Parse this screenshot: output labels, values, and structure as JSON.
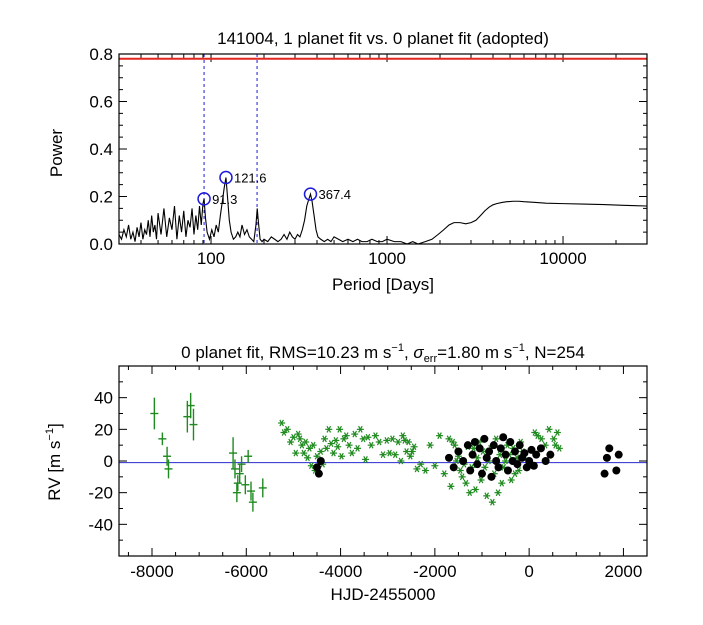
{
  "colors": {
    "axis": "#000000",
    "periodogram": "#000000",
    "fap_line": "#e3261f",
    "alias_line": "#1a1adb",
    "peak_marker": "#1a1adb",
    "zero_line": "#2a2ad0",
    "series_green": "#1f8a1f",
    "series_black": "#000000"
  },
  "chart_data": [
    {
      "type": "line",
      "title": "141004,  1 planet fit vs. 0 planet fit (adopted)",
      "xlabel": "Period [Days]",
      "ylabel": "Power",
      "xscale": "log",
      "xlim": [
        30,
        30000
      ],
      "ylim": [
        0,
        0.8
      ],
      "xticks": [
        100,
        1000,
        10000
      ],
      "xtick_labels": [
        "100",
        "1000",
        "10000"
      ],
      "yticks": [
        0.0,
        0.2,
        0.4,
        0.6,
        0.8
      ],
      "ytick_labels": [
        "0.0",
        "0.2",
        "0.4",
        "0.6",
        "0.8"
      ],
      "fap_level": 0.78,
      "alias_periods": [
        91.3,
        182.6
      ],
      "peaks": [
        {
          "period": 91.3,
          "power": 0.19,
          "label": "91.3"
        },
        {
          "period": 121.6,
          "power": 0.28,
          "label": "121.6"
        },
        {
          "period": 367.4,
          "power": 0.21,
          "label": "367.4"
        }
      ],
      "series": [
        {
          "name": "periodogram",
          "x": [
            30,
            31,
            32,
            33,
            34,
            35,
            36,
            37,
            38,
            39,
            40,
            41,
            42,
            43,
            44,
            45,
            46,
            47,
            48,
            49,
            50,
            52,
            54,
            56,
            58,
            60,
            62,
            64,
            66,
            68,
            70,
            72,
            74,
            76,
            78,
            80,
            82,
            84,
            86,
            88,
            90,
            91.3,
            93,
            95,
            98,
            101,
            104,
            107,
            110,
            113,
            116,
            119,
            121.6,
            124,
            127,
            130,
            134,
            138,
            142,
            146,
            150,
            155,
            160,
            165,
            170,
            175,
            180,
            183,
            186,
            190,
            195,
            200,
            210,
            220,
            230,
            240,
            250,
            260,
            270,
            280,
            290,
            300,
            310,
            320,
            330,
            340,
            350,
            360,
            367.4,
            375,
            385,
            395,
            405,
            420,
            440,
            460,
            480,
            500,
            530,
            560,
            600,
            640,
            680,
            720,
            770,
            820,
            880,
            940,
            1000,
            1100,
            1200,
            1300,
            1400,
            1500,
            1650,
            1800,
            1950,
            2100,
            2250,
            2400,
            2600,
            2800,
            3000,
            3200,
            3400,
            3600,
            3800,
            4000,
            4200,
            4500,
            4800,
            5200,
            5600,
            6000,
            7000,
            8000,
            10000,
            13000,
            17000,
            22000,
            30000
          ],
          "y": [
            0.04,
            0.02,
            0.06,
            0.03,
            0.08,
            0.02,
            0.05,
            0.01,
            0.07,
            0.03,
            0.09,
            0.02,
            0.06,
            0.04,
            0.1,
            0.03,
            0.12,
            0.05,
            0.08,
            0.02,
            0.13,
            0.04,
            0.15,
            0.03,
            0.11,
            0.06,
            0.16,
            0.02,
            0.12,
            0.05,
            0.14,
            0.03,
            0.1,
            0.07,
            0.15,
            0.04,
            0.12,
            0.06,
            0.16,
            0.08,
            0.17,
            0.19,
            0.11,
            0.05,
            0.02,
            0.06,
            0.03,
            0.08,
            0.05,
            0.12,
            0.18,
            0.24,
            0.28,
            0.2,
            0.1,
            0.05,
            0.02,
            0.03,
            0.05,
            0.03,
            0.08,
            0.04,
            0.06,
            0.03,
            0.02,
            0.01,
            0.08,
            0.15,
            0.09,
            0.02,
            0.01,
            0.02,
            0.01,
            0.03,
            0.02,
            0.01,
            0.02,
            0.04,
            0.02,
            0.05,
            0.03,
            0.02,
            0.04,
            0.03,
            0.06,
            0.1,
            0.16,
            0.19,
            0.21,
            0.18,
            0.12,
            0.06,
            0.03,
            0.02,
            0.01,
            0.02,
            0.01,
            0.03,
            0.02,
            0.01,
            0.02,
            0.01,
            0.02,
            0.01,
            0.01,
            0.02,
            0.01,
            0.01,
            0.02,
            0.01,
            0.01,
            0.0,
            0.01,
            0.0,
            0.01,
            0.02,
            0.04,
            0.06,
            0.08,
            0.09,
            0.09,
            0.085,
            0.09,
            0.1,
            0.12,
            0.14,
            0.155,
            0.165,
            0.17,
            0.175,
            0.178,
            0.18,
            0.18,
            0.178,
            0.175,
            0.172,
            0.17,
            0.168,
            0.166,
            0.163,
            0.16
          ]
        }
      ]
    },
    {
      "type": "scatter",
      "title": "0 planet fit, RMS=10.23 m s⁻¹, σerr=1.80 m s⁻¹, N=254",
      "title_parts": {
        "lead": "0 planet fit, RMS=10.23 m s",
        "exp1": "−1",
        "mid": ", ",
        "sigma": "σ",
        "sub": "err",
        "tail": "=1.80 m s",
        "exp2": "−1",
        "end": ", N=254"
      },
      "xlabel": "HJD-2455000",
      "ylabel": "RV [m s⁻¹]",
      "ylabel_parts": {
        "base": "RV [m s",
        "exp": "−1",
        "close": "]"
      },
      "xlim": [
        -8700,
        2500
      ],
      "ylim": [
        -60,
        60
      ],
      "xticks": [
        -8000,
        -6000,
        -4000,
        -2000,
        0,
        2000
      ],
      "xtick_labels": [
        "-8000",
        "-6000",
        "-4000",
        "-2000",
        "0",
        "2000"
      ],
      "yticks": [
        -40,
        -20,
        0,
        20,
        40
      ],
      "ytick_labels": [
        "-40",
        "-20",
        "0",
        "20",
        "40"
      ],
      "zero_level": -1,
      "series": [
        {
          "name": "early (with error bars)",
          "marker": "plus",
          "x": [
            -7950,
            -7780,
            -7680,
            -7650,
            -7250,
            -7180,
            -7120,
            -6280,
            -6240,
            -6200,
            -6180,
            -6140,
            -6100,
            -6020,
            -5960,
            -5900,
            -5860,
            -5650
          ],
          "y": [
            30,
            14,
            3,
            -5,
            28,
            35,
            23,
            5,
            -5,
            -20,
            -14,
            -8,
            -2,
            -15,
            3,
            -19,
            -26,
            -17
          ],
          "err": [
            10,
            4,
            6,
            6,
            10,
            8,
            10,
            10,
            6,
            6,
            5,
            6,
            5,
            6,
            4,
            6,
            6,
            6
          ]
        },
        {
          "name": "green asterisks",
          "marker": "star",
          "x": [
            -5250,
            -5200,
            -5130,
            -5060,
            -5000,
            -4950,
            -4900,
            -4860,
            -4820,
            -4780,
            -4740,
            -4700,
            -4660,
            -4620,
            -4580,
            -4540,
            -4500,
            -4460,
            -4420,
            -4380,
            -4340,
            -4300,
            -4250,
            -4200,
            -4150,
            -4100,
            -4060,
            -4020,
            -3980,
            -3930,
            -3880,
            -3820,
            -3760,
            -3700,
            -3640,
            -3580,
            -3520,
            -3470,
            -3420,
            -3350,
            -3260,
            -3180,
            -3100,
            -3020,
            -2960,
            -2900,
            -2840,
            -2780,
            -2720,
            -2680,
            -2640,
            -2600,
            -2560,
            -2520,
            -2480,
            -2440,
            -2380,
            -2300,
            -2200,
            -2100,
            -2000,
            -1900,
            -1800,
            -1700,
            -1660,
            -1620,
            -1580,
            -1540,
            -1500,
            -1460,
            -1420,
            -1380,
            -1340,
            -1300,
            -1260,
            -1220,
            -1180,
            -1140,
            -1100,
            -1060,
            -1020,
            -980,
            -940,
            -900,
            -860,
            -820,
            -780,
            -740,
            -700,
            -660,
            -620,
            -580,
            -540,
            -500,
            -460,
            -420,
            -380,
            -340,
            -300,
            -260,
            -220,
            -180,
            -140,
            -100,
            120,
            180,
            260,
            340,
            420,
            520,
            560,
            600,
            640
          ],
          "y": [
            24,
            18,
            20,
            12,
            15,
            5,
            17,
            14,
            10,
            5,
            12,
            2,
            8,
            -3,
            10,
            -6,
            3,
            -8,
            6,
            -2,
            14,
            8,
            20,
            11,
            5,
            13,
            9,
            20,
            3,
            14,
            16,
            10,
            5,
            17,
            8,
            20,
            14,
            1,
            15,
            10,
            16,
            12,
            4,
            13,
            5,
            14,
            4,
            12,
            0,
            16,
            13,
            6,
            12,
            3,
            6,
            9,
            -5,
            -2,
            -6,
            10,
            -3,
            16,
            -8,
            14,
            -16,
            12,
            10,
            0,
            3,
            -6,
            -10,
            -2,
            -14,
            9,
            -20,
            -4,
            8,
            -18,
            2,
            12,
            -12,
            6,
            -4,
            -22,
            0,
            8,
            -26,
            -8,
            14,
            -20,
            4,
            -14,
            -4,
            0,
            10,
            4,
            -12,
            8,
            -8,
            2,
            -6,
            12,
            6,
            4,
            18,
            16,
            14,
            10,
            20,
            14,
            10,
            18,
            8
          ]
        },
        {
          "name": "black filled circles",
          "marker": "circle",
          "x": [
            -4500,
            -4460,
            -4420,
            -1700,
            -1600,
            -1500,
            -1400,
            -1300,
            -1250,
            -1200,
            -1150,
            -1100,
            -1050,
            -1000,
            -950,
            -900,
            -850,
            -800,
            -750,
            -700,
            -650,
            -600,
            -550,
            -500,
            -450,
            -400,
            -350,
            -300,
            -250,
            -200,
            -150,
            -100,
            -50,
            0,
            50,
            100,
            150,
            250,
            350,
            450,
            1600,
            1650,
            1700,
            1850,
            1900
          ],
          "y": [
            -4,
            -8,
            0,
            2,
            -4,
            6,
            0,
            10,
            -6,
            4,
            12,
            -2,
            8,
            -8,
            14,
            2,
            6,
            -10,
            10,
            0,
            -4,
            8,
            15,
            4,
            -6,
            12,
            0,
            6,
            -2,
            10,
            2,
            5,
            -4,
            0,
            7,
            -3,
            4,
            8,
            0,
            4,
            -8,
            2,
            8,
            -6,
            4
          ]
        }
      ]
    }
  ]
}
